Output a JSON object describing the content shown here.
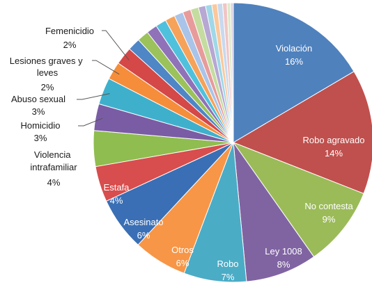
{
  "chart_data": {
    "type": "pie",
    "title": "",
    "unit": "%",
    "slices": [
      {
        "label": "Violación",
        "value": 16,
        "value_label": "16%",
        "color": "#4f81bd"
      },
      {
        "label": "Robo agravado",
        "value": 14,
        "value_label": "14%",
        "color": "#c0504d"
      },
      {
        "label": "No contesta",
        "value": 9,
        "value_label": "9%",
        "color": "#9bbb59"
      },
      {
        "label": "Ley 1008",
        "value": 8,
        "value_label": "8%",
        "color": "#8064a2"
      },
      {
        "label": "Robo",
        "value": 7,
        "value_label": "7%",
        "color": "#4bacc6"
      },
      {
        "label": "Otros",
        "value": 6,
        "value_label": "6%",
        "color": "#f79646"
      },
      {
        "label": "Asesinato",
        "value": 6,
        "value_label": "6%",
        "color": "#3a6fb5"
      },
      {
        "label": "Estafa",
        "value": 4,
        "value_label": "4%",
        "color": "#d84d4d"
      },
      {
        "label": "Violencia intrafamiliar",
        "value": 4,
        "value_label": "4%",
        "color": "#8fbd4f"
      },
      {
        "label": "Homicidio",
        "value": 3,
        "value_label": "3%",
        "color": "#7a5ca5"
      },
      {
        "label": "Abuso sexual",
        "value": 3,
        "value_label": "3%",
        "color": "#3fb0cc"
      },
      {
        "label": "Lesiones graves y leves",
        "value": 2,
        "value_label": "2%",
        "color": "#f58d3a"
      },
      {
        "label": "Femenicidio",
        "value": 2,
        "value_label": "2%",
        "color": "#d44848"
      },
      {
        "label": "",
        "value": 1.4,
        "color": "#4e86c6"
      },
      {
        "label": "",
        "value": 1.3,
        "color": "#9bc25b"
      },
      {
        "label": "",
        "value": 1.2,
        "color": "#8f72b8"
      },
      {
        "label": "",
        "value": 1.2,
        "color": "#4fc1dc"
      },
      {
        "label": "",
        "value": 1.1,
        "color": "#f6a25a"
      },
      {
        "label": "",
        "value": 1.0,
        "color": "#a9c4e8"
      },
      {
        "label": "",
        "value": 0.9,
        "color": "#e79b9b"
      },
      {
        "label": "",
        "value": 0.9,
        "color": "#c5dca0"
      },
      {
        "label": "",
        "value": 0.8,
        "color": "#b7a7d3"
      },
      {
        "label": "",
        "value": 0.7,
        "color": "#9fd8e8"
      },
      {
        "label": "",
        "value": 0.6,
        "color": "#fbc89b"
      },
      {
        "label": "",
        "value": 0.6,
        "color": "#c9d9ee"
      },
      {
        "label": "",
        "value": 0.5,
        "color": "#f1c5c5"
      },
      {
        "label": "",
        "value": 0.4,
        "color": "#dde9c8"
      },
      {
        "label": "",
        "value": 0.3,
        "color": "#d7cfe6"
      }
    ],
    "legend": "none"
  }
}
